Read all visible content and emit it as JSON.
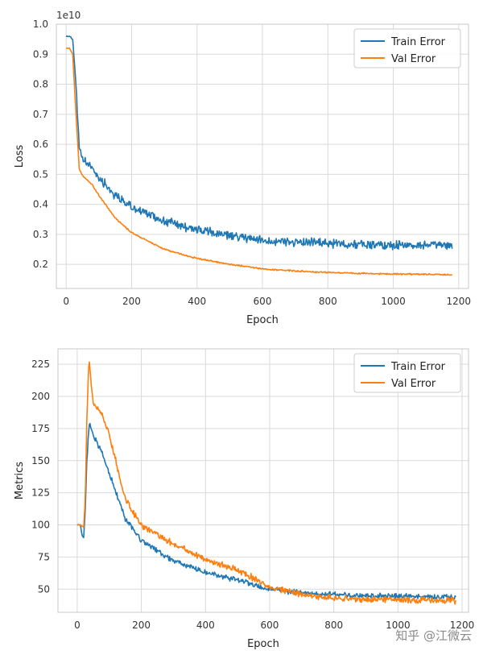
{
  "watermark": "知乎 @江微云",
  "colors": {
    "train": "#1f77b4",
    "val": "#ff7f0e",
    "grid": "#d9d9d9",
    "frame": "#c8c8c8"
  },
  "chart_data": [
    {
      "type": "line",
      "title": "",
      "xlabel": "Epoch",
      "ylabel": "Loss",
      "offset_label": "1e10",
      "xlim": [
        -30,
        1230
      ],
      "ylim": [
        0.12,
        1.0
      ],
      "xticks": [
        0,
        200,
        400,
        600,
        800,
        1000,
        1200
      ],
      "xtick_labels": [
        "0",
        "200",
        "400",
        "600",
        "800",
        "1000",
        "1200"
      ],
      "yticks": [
        0.2,
        0.3,
        0.4,
        0.5,
        0.6,
        0.7,
        0.8,
        0.9,
        1.0
      ],
      "ytick_labels": [
        "0.2",
        "0.3",
        "0.4",
        "0.5",
        "0.6",
        "0.7",
        "0.8",
        "0.9",
        "1.0"
      ],
      "legend_position": "top-right",
      "series": [
        {
          "name": "Train Error",
          "color": "#1f77b4",
          "noise": 0.012,
          "x": [
            0,
            10,
            20,
            30,
            40,
            50,
            60,
            80,
            100,
            150,
            200,
            300,
            400,
            500,
            600,
            700,
            800,
            900,
            1000,
            1100,
            1180
          ],
          "y": [
            0.96,
            0.96,
            0.95,
            0.8,
            0.58,
            0.55,
            0.54,
            0.52,
            0.49,
            0.43,
            0.39,
            0.345,
            0.315,
            0.295,
            0.28,
            0.275,
            0.27,
            0.267,
            0.265,
            0.263,
            0.262
          ]
        },
        {
          "name": "Val Error",
          "color": "#ff7f0e",
          "noise": 0.002,
          "x": [
            0,
            10,
            20,
            30,
            40,
            50,
            60,
            80,
            100,
            150,
            200,
            300,
            400,
            500,
            600,
            700,
            800,
            900,
            1000,
            1100,
            1180
          ],
          "y": [
            0.92,
            0.92,
            0.9,
            0.7,
            0.52,
            0.495,
            0.485,
            0.465,
            0.43,
            0.355,
            0.305,
            0.25,
            0.22,
            0.2,
            0.185,
            0.178,
            0.173,
            0.17,
            0.168,
            0.167,
            0.166
          ]
        }
      ]
    },
    {
      "type": "line",
      "title": "",
      "xlabel": "Epoch",
      "ylabel": "Metrics",
      "offset_label": "",
      "xlim": [
        -60,
        1220
      ],
      "ylim": [
        32,
        237
      ],
      "xticks": [
        0,
        200,
        400,
        600,
        800,
        1000,
        1200
      ],
      "xtick_labels": [
        "0",
        "200",
        "400",
        "600",
        "800",
        "1000",
        "1200"
      ],
      "yticks": [
        50,
        75,
        100,
        125,
        150,
        175,
        200,
        225
      ],
      "ytick_labels": [
        "50",
        "75",
        "100",
        "125",
        "150",
        "175",
        "200",
        "225"
      ],
      "legend_position": "top-right",
      "series": [
        {
          "name": "Train Error",
          "color": "#1f77b4",
          "noise": 1.6,
          "x": [
            0,
            10,
            15,
            20,
            25,
            30,
            38,
            50,
            80,
            100,
            150,
            200,
            300,
            400,
            500,
            600,
            700,
            800,
            900,
            1000,
            1100,
            1180
          ],
          "y": [
            100,
            100,
            92,
            90,
            110,
            150,
            180,
            170,
            155,
            140,
            105,
            88,
            72,
            63,
            57,
            50,
            47,
            46,
            45,
            44.5,
            44,
            43.5
          ]
        },
        {
          "name": "Val Error",
          "color": "#ff7f0e",
          "noise": 2.0,
          "x": [
            0,
            10,
            20,
            25,
            30,
            35,
            38,
            50,
            80,
            100,
            150,
            200,
            300,
            400,
            500,
            600,
            700,
            800,
            900,
            1000,
            1100,
            1180
          ],
          "y": [
            100,
            100,
            98,
            120,
            180,
            220,
            225,
            195,
            185,
            170,
            120,
            100,
            85,
            73,
            65,
            52,
            46,
            43,
            42,
            42,
            41.5,
            41
          ]
        }
      ]
    }
  ]
}
